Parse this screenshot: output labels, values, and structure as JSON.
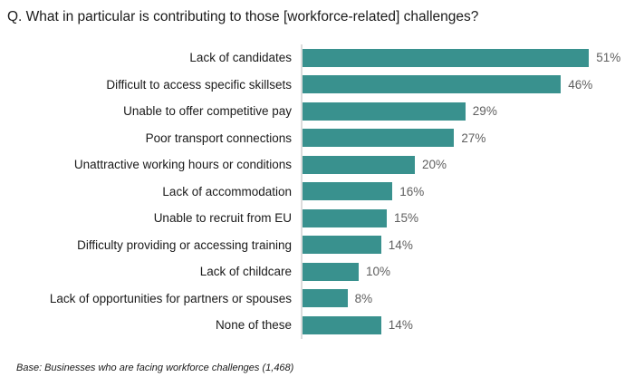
{
  "page": {
    "title": "Q. What in particular is contributing to those [workforce-related] challenges?",
    "footer": "Base: Businesses who are facing workforce challenges (1,468)"
  },
  "colors": {
    "bar": "#39918E",
    "axis_line": "#DCDCDC",
    "category_label": "#1A1A1A",
    "value_label": "#5F5F5F",
    "background": "#FFFFFF"
  },
  "chart_data": {
    "type": "bar",
    "orientation": "horizontal",
    "title": "Q. What in particular is contributing to those [workforce-related] challenges?",
    "categories": [
      "Lack of candidates",
      "Difficult to access specific skillsets",
      "Unable to offer competitive pay",
      "Poor transport connections",
      "Unattractive working hours or conditions",
      "Lack of accommodation",
      "Unable to recruit from EU",
      "Difficulty providing or accessing training",
      "Lack of childcare",
      "Lack of opportunities for partners or spouses",
      "None of these"
    ],
    "values": [
      51,
      46,
      29,
      27,
      20,
      16,
      15,
      14,
      10,
      8,
      14
    ],
    "value_suffix": "%",
    "xlabel": "",
    "ylabel": "",
    "xlim": [
      0,
      55
    ],
    "grid": false,
    "legend": false,
    "annotation": "Base: Businesses who are facing workforce challenges (1,468)"
  }
}
